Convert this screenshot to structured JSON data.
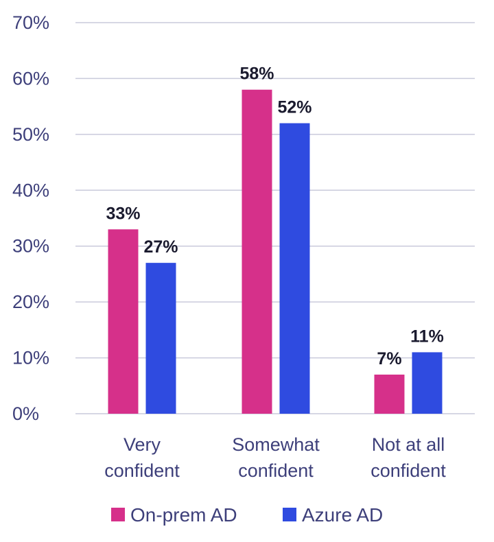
{
  "chart_data": {
    "type": "bar",
    "categories": [
      [
        "Very",
        "confident"
      ],
      [
        "Somewhat",
        "confident"
      ],
      [
        "Not at all",
        "confident"
      ]
    ],
    "series": [
      {
        "name": "On-prem AD",
        "color": "#d6308a",
        "values": [
          33,
          58,
          7
        ],
        "labels": [
          "33%",
          "58%",
          "7%"
        ]
      },
      {
        "name": "Azure AD",
        "color": "#2f4be0",
        "values": [
          27,
          52,
          11
        ],
        "labels": [
          "27%",
          "52%",
          "11%"
        ]
      }
    ],
    "y_ticks": [
      "0%",
      "10%",
      "20%",
      "30%",
      "40%",
      "50%",
      "60%",
      "70%"
    ],
    "ylim": [
      0,
      70
    ],
    "grid": true,
    "legend_position": "bottom"
  }
}
